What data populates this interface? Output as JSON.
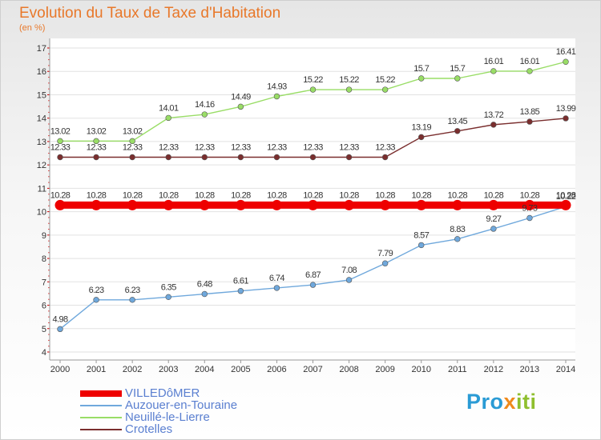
{
  "title": "Evolution du Taux de Taxe d'Habitation",
  "unit_label": "(en %)",
  "brand": {
    "part1": "Pro",
    "part2": "x",
    "part3": "iti"
  },
  "chart_data": {
    "type": "line",
    "x": [
      "2000",
      "2001",
      "2002",
      "2003",
      "2004",
      "2005",
      "2006",
      "2007",
      "2008",
      "2009",
      "2010",
      "2011",
      "2012",
      "2013",
      "2014"
    ],
    "ylim": [
      4,
      17
    ],
    "yticks": [
      "4",
      "5",
      "6",
      "7",
      "8",
      "9",
      "10",
      "11",
      "12",
      "13",
      "14",
      "15",
      "16",
      "17"
    ],
    "grid": "y",
    "legend_position": "bottom-left",
    "series": [
      {
        "name": "VILLEDôMER",
        "color": "#ee0000",
        "values": [
          10.28,
          10.28,
          10.28,
          10.28,
          10.28,
          10.28,
          10.28,
          10.28,
          10.28,
          10.28,
          10.28,
          10.28,
          10.28,
          10.28,
          10.28
        ],
        "labels": [
          "10.28",
          "10.28",
          "10.28",
          "10.28",
          "10.28",
          "10.28",
          "10.28",
          "10.28",
          "10.28",
          "10.28",
          "10.28",
          "10.28",
          "10.28",
          "10.28",
          "10.28"
        ]
      },
      {
        "name": "Auzouer-en-Touraine",
        "color": "#6fa8dc",
        "values": [
          4.98,
          6.23,
          6.23,
          6.35,
          6.48,
          6.61,
          6.74,
          6.87,
          7.08,
          7.79,
          8.57,
          8.83,
          9.27,
          9.73,
          10.22
        ],
        "labels": [
          "4.98",
          "6.23",
          "6.23",
          "6.35",
          "6.48",
          "6.61",
          "6.74",
          "6.87",
          "7.08",
          "7.79",
          "8.57",
          "8.83",
          "9.27",
          "9.73",
          "10.22"
        ]
      },
      {
        "name": "Neuillé-le-Lierre",
        "color": "#99dd66",
        "values": [
          13.02,
          13.02,
          13.02,
          14.01,
          14.16,
          14.49,
          14.93,
          15.22,
          15.22,
          15.22,
          15.7,
          15.7,
          16.01,
          16.01,
          16.41
        ],
        "labels": [
          "13.02",
          "13.02",
          "13.02",
          "14.01",
          "14.16",
          "14.49",
          "14.93",
          "15.22",
          "15.22",
          "15.22",
          "15.7",
          "15.7",
          "16.01",
          "16.01",
          "16.41"
        ]
      },
      {
        "name": "Crotelles",
        "color": "#7a2e2e",
        "values": [
          12.33,
          12.33,
          12.33,
          12.33,
          12.33,
          12.33,
          12.33,
          12.33,
          12.33,
          12.33,
          13.19,
          13.45,
          13.72,
          13.85,
          13.99
        ],
        "labels": [
          "12.33",
          "12.33",
          "12.33",
          "12.33",
          "12.33",
          "12.33",
          "12.33",
          "12.33",
          "12.33",
          "12.33",
          "13.19",
          "13.45",
          "13.72",
          "13.85",
          "13.99"
        ]
      }
    ]
  }
}
